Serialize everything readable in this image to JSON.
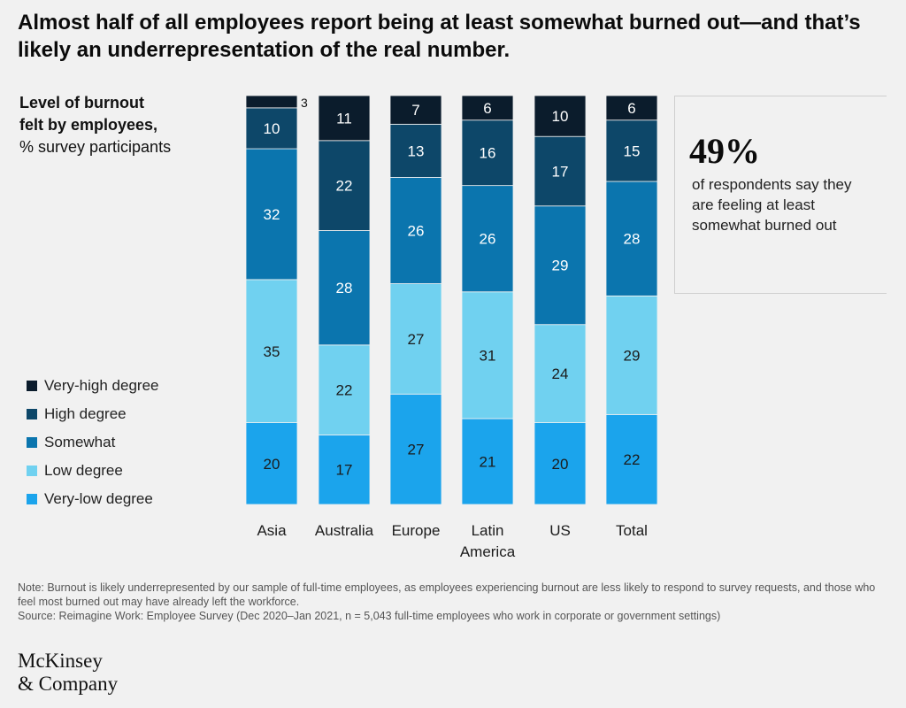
{
  "title": "Almost half of all employees report being at least somewhat burned out—and that’s likely an underrepresentation of the real number.",
  "axis_title": {
    "line1": "Level of burnout",
    "line2": "felt by employees,",
    "line3": "% survey participants"
  },
  "callout": {
    "value": "49%",
    "text": "of respondents say they are feeling at least somewhat burned out"
  },
  "notes": {
    "note": "Note: Burnout is likely underrepresented by our sample of full-time employees, as employees experiencing burnout are less likely to respond to survey requests, and those who feel most burned out may have already left the workforce.",
    "source": "Source: Reimagine Work: Employee Survey (Dec 2020–Jan 2021, n = 5,043 full-time employees who work in corporate or government settings)"
  },
  "logo": {
    "line1": "McKinsey",
    "line2": "& Company"
  },
  "chart_data": {
    "type": "bar",
    "stacked": true,
    "categories": [
      "Asia",
      "Australia",
      "Europe",
      "Latin America",
      "US",
      "Total"
    ],
    "category_lines": [
      [
        "Asia"
      ],
      [
        "Australia"
      ],
      [
        "Europe"
      ],
      [
        "Latin",
        "America"
      ],
      [
        "US"
      ],
      [
        "Total"
      ]
    ],
    "series": [
      {
        "name": "Very-low degree",
        "color": "#1ba4ec",
        "values": [
          20,
          17,
          27,
          21,
          20,
          22
        ]
      },
      {
        "name": "Low degree",
        "color": "#70d1f0",
        "values": [
          35,
          22,
          27,
          31,
          24,
          29
        ]
      },
      {
        "name": "Somewhat",
        "color": "#0b75ae",
        "values": [
          32,
          28,
          26,
          26,
          29,
          28
        ]
      },
      {
        "name": "High degree",
        "color": "#0d4769",
        "values": [
          10,
          22,
          13,
          16,
          17,
          15
        ]
      },
      {
        "name": "Very-high degree",
        "color": "#0b1c2c",
        "values": [
          3,
          11,
          7,
          6,
          10,
          6
        ]
      }
    ],
    "legend_order": [
      "Very-high degree",
      "High degree",
      "Somewhat",
      "Low degree",
      "Very-low degree"
    ],
    "ylim": [
      0,
      100
    ],
    "legend_position": "left"
  }
}
